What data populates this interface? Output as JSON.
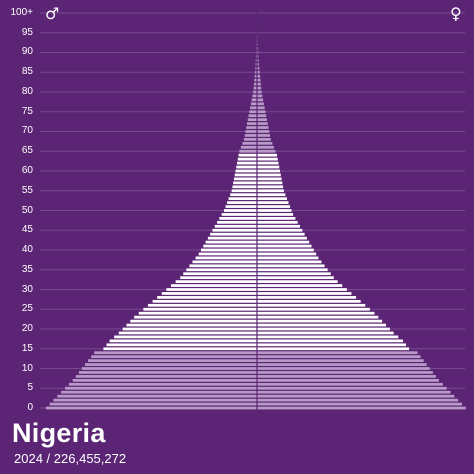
{
  "header": {
    "male_symbol": "♂",
    "female_symbol": "♀"
  },
  "footer": {
    "country": "Nigeria",
    "year": "2024",
    "separator": "/",
    "population": "226,455,272"
  },
  "colors": {
    "background": "#5b2474",
    "bar_main": "#ffffff",
    "bar_muted": "#b79bc6",
    "gridline": "#7a4a90",
    "centerline": "#5b2474"
  },
  "chart_data": {
    "type": "bar",
    "orientation": "horizontal",
    "subtype": "population-pyramid",
    "y_tick_labels": [
      "100+",
      "95",
      "90",
      "85",
      "80",
      "75",
      "70",
      "65",
      "60",
      "55",
      "50",
      "45",
      "40",
      "35",
      "30",
      "25",
      "20",
      "15",
      "10",
      "5",
      "0"
    ],
    "highlight_ages": {
      "from": 15,
      "to": 64,
      "note_style": "ages outside this range drawn in muted color"
    },
    "value_unit": "percent of total population per single year of age",
    "xlim": [
      -2.8,
      2.8
    ],
    "ages": [
      0,
      1,
      2,
      3,
      4,
      5,
      6,
      7,
      8,
      9,
      10,
      11,
      12,
      13,
      14,
      15,
      16,
      17,
      18,
      19,
      20,
      21,
      22,
      23,
      24,
      25,
      26,
      27,
      28,
      29,
      30,
      31,
      32,
      33,
      34,
      35,
      36,
      37,
      38,
      39,
      40,
      41,
      42,
      43,
      44,
      45,
      46,
      47,
      48,
      49,
      50,
      51,
      52,
      53,
      54,
      55,
      56,
      57,
      58,
      59,
      60,
      61,
      62,
      63,
      64,
      65,
      66,
      67,
      68,
      69,
      70,
      71,
      72,
      73,
      74,
      75,
      76,
      77,
      78,
      79,
      80,
      81,
      82,
      83,
      84,
      85,
      86,
      87,
      88,
      89,
      90,
      91,
      92,
      93,
      94,
      95,
      96,
      97,
      98,
      99,
      100
    ],
    "male": [
      2.75,
      2.7,
      2.65,
      2.6,
      2.55,
      2.5,
      2.45,
      2.4,
      2.36,
      2.32,
      2.28,
      2.24,
      2.2,
      2.16,
      2.12,
      2.0,
      1.96,
      1.92,
      1.86,
      1.8,
      1.75,
      1.7,
      1.65,
      1.6,
      1.54,
      1.48,
      1.42,
      1.36,
      1.3,
      1.24,
      1.18,
      1.12,
      1.06,
      1.0,
      0.96,
      0.92,
      0.88,
      0.84,
      0.8,
      0.76,
      0.73,
      0.7,
      0.67,
      0.64,
      0.61,
      0.58,
      0.55,
      0.52,
      0.49,
      0.46,
      0.43,
      0.41,
      0.39,
      0.37,
      0.35,
      0.33,
      0.32,
      0.31,
      0.3,
      0.29,
      0.28,
      0.27,
      0.26,
      0.25,
      0.24,
      0.23,
      0.21,
      0.19,
      0.17,
      0.16,
      0.15,
      0.14,
      0.13,
      0.12,
      0.11,
      0.1,
      0.09,
      0.08,
      0.07,
      0.06,
      0.05,
      0.045,
      0.04,
      0.035,
      0.03,
      0.025,
      0.02,
      0.018,
      0.016,
      0.014,
      0.012,
      0.011,
      0.01,
      0.009,
      0.008,
      0.007,
      0.006,
      0.005,
      0.004,
      0.003,
      0.003
    ],
    "female": [
      2.72,
      2.67,
      2.62,
      2.57,
      2.52,
      2.47,
      2.42,
      2.37,
      2.33,
      2.29,
      2.25,
      2.21,
      2.17,
      2.13,
      2.09,
      1.98,
      1.94,
      1.9,
      1.84,
      1.78,
      1.73,
      1.68,
      1.63,
      1.58,
      1.53,
      1.47,
      1.41,
      1.35,
      1.29,
      1.23,
      1.17,
      1.11,
      1.05,
      1.0,
      0.96,
      0.92,
      0.88,
      0.84,
      0.8,
      0.77,
      0.74,
      0.71,
      0.68,
      0.65,
      0.62,
      0.59,
      0.56,
      0.53,
      0.5,
      0.47,
      0.45,
      0.43,
      0.41,
      0.39,
      0.37,
      0.35,
      0.34,
      0.33,
      0.32,
      0.31,
      0.3,
      0.29,
      0.28,
      0.27,
      0.26,
      0.24,
      0.22,
      0.2,
      0.18,
      0.17,
      0.16,
      0.15,
      0.14,
      0.13,
      0.12,
      0.11,
      0.1,
      0.09,
      0.08,
      0.07,
      0.06,
      0.055,
      0.05,
      0.045,
      0.04,
      0.035,
      0.03,
      0.025,
      0.02,
      0.018,
      0.016,
      0.014,
      0.012,
      0.01,
      0.009,
      0.008,
      0.007,
      0.006,
      0.005,
      0.004,
      0.003
    ]
  }
}
